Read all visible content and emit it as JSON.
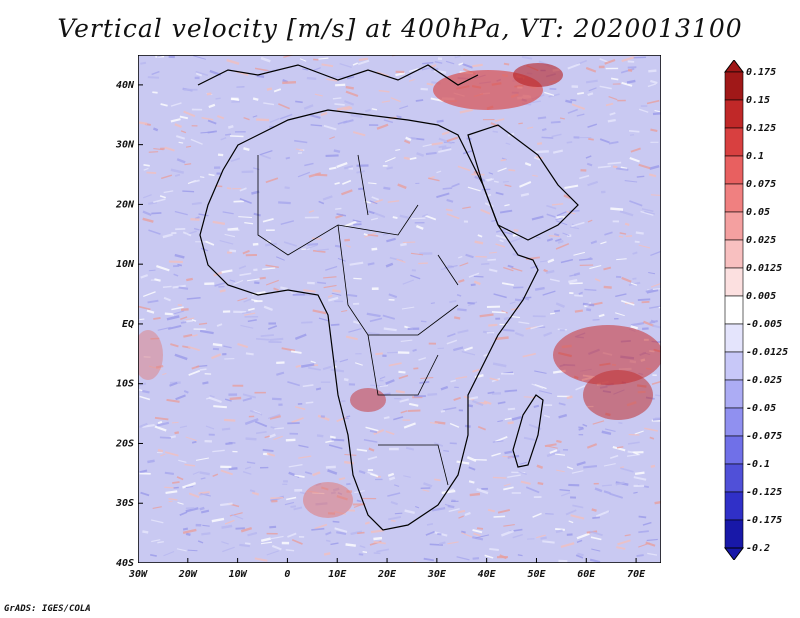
{
  "title": "Vertical velocity [m/s] at 400hPa, VT: 2020013100",
  "credit": "GrADS: IGES/COLA",
  "map": {
    "lon_range": [
      -30,
      75
    ],
    "lat_range": [
      -40,
      45
    ],
    "lat_ticks": [
      {
        "value": 40,
        "label": "40N"
      },
      {
        "value": 30,
        "label": "30N"
      },
      {
        "value": 20,
        "label": "20N"
      },
      {
        "value": 10,
        "label": "10N"
      },
      {
        "value": 0,
        "label": "EQ"
      },
      {
        "value": -10,
        "label": "10S"
      },
      {
        "value": -20,
        "label": "20S"
      },
      {
        "value": -30,
        "label": "30S"
      },
      {
        "value": -40,
        "label": "40S"
      }
    ],
    "lon_ticks": [
      {
        "value": -30,
        "label": "30W"
      },
      {
        "value": -20,
        "label": "20W"
      },
      {
        "value": -10,
        "label": "10W"
      },
      {
        "value": 0,
        "label": "0"
      },
      {
        "value": 10,
        "label": "10E"
      },
      {
        "value": 20,
        "label": "20E"
      },
      {
        "value": 30,
        "label": "30E"
      },
      {
        "value": 40,
        "label": "40E"
      },
      {
        "value": 50,
        "label": "50E"
      },
      {
        "value": 60,
        "label": "60E"
      },
      {
        "value": 70,
        "label": "70E"
      }
    ]
  },
  "colorbar": {
    "labels": [
      "0.175",
      "0.15",
      "0.125",
      "0.1",
      "0.075",
      "0.05",
      "0.025",
      "0.0125",
      "0.005",
      "-0.005",
      "-0.0125",
      "-0.025",
      "-0.05",
      "-0.075",
      "-0.1",
      "-0.125",
      "-0.175",
      "-0.2"
    ],
    "colors": [
      "#a01818",
      "#c02828",
      "#d84040",
      "#e86060",
      "#f08080",
      "#f4a0a0",
      "#f8c0c0",
      "#fce0e0",
      "#ffffff",
      "#e4e4fc",
      "#c8c8f8",
      "#acacf4",
      "#9090f0",
      "#7070e8",
      "#5050d8",
      "#3030c8",
      "#1818a8"
    ]
  }
}
